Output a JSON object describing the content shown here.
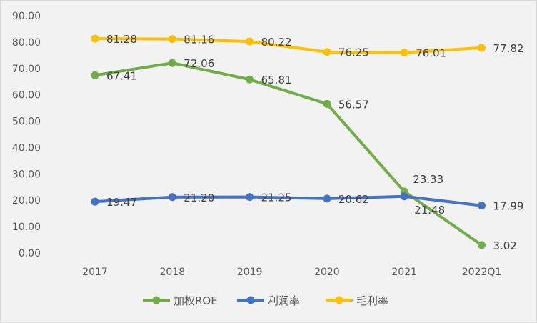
{
  "chart_data": {
    "type": "line",
    "categories": [
      "2017",
      "2018",
      "2019",
      "2020",
      "2021",
      "2022Q1"
    ],
    "ylim": [
      0,
      90
    ],
    "yticks": [
      "0.00",
      "10.00",
      "20.00",
      "30.00",
      "40.00",
      "50.00",
      "60.00",
      "70.00",
      "80.00",
      "90.00"
    ],
    "grid": false,
    "legend": "bottom",
    "series": [
      {
        "name": "加权ROE",
        "color": "#70ad47",
        "values": [
          67.41,
          72.06,
          65.81,
          56.57,
          23.33,
          3.02
        ],
        "labels": [
          "67.41",
          "72.06",
          "65.81",
          "56.57",
          "23.33",
          "3.02"
        ]
      },
      {
        "name": "利润率",
        "color": "#4472c4",
        "values": [
          19.47,
          21.2,
          21.25,
          20.62,
          21.48,
          17.99
        ],
        "labels": [
          "19.47",
          "21.20",
          "21.25",
          "20.62",
          "21.48",
          "17.99"
        ]
      },
      {
        "name": "毛利率",
        "color": "#ffc000",
        "values": [
          81.28,
          81.16,
          80.22,
          76.25,
          76.01,
          77.82
        ],
        "labels": [
          "81.28",
          "81.16",
          "80.22",
          "76.25",
          "76.01",
          "77.82"
        ]
      }
    ]
  }
}
